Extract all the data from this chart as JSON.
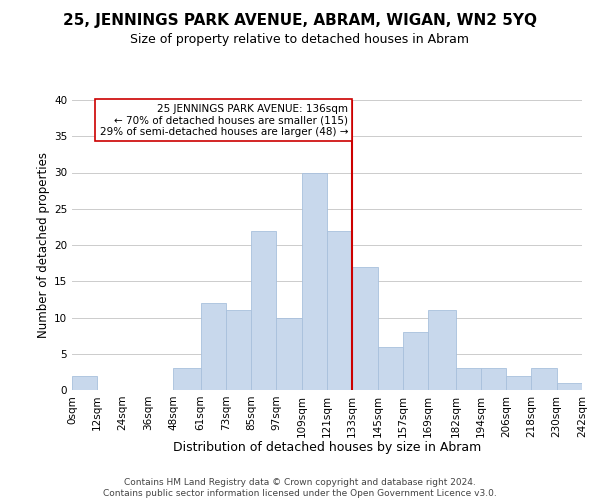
{
  "title": "25, JENNINGS PARK AVENUE, ABRAM, WIGAN, WN2 5YQ",
  "subtitle": "Size of property relative to detached houses in Abram",
  "xlabel": "Distribution of detached houses by size in Abram",
  "ylabel": "Number of detached properties",
  "footer_line1": "Contains HM Land Registry data © Crown copyright and database right 2024.",
  "footer_line2": "Contains public sector information licensed under the Open Government Licence v3.0.",
  "bin_edges": [
    0,
    12,
    24,
    36,
    48,
    61,
    73,
    85,
    97,
    109,
    121,
    133,
    145,
    157,
    169,
    182,
    194,
    206,
    218,
    230,
    242
  ],
  "bin_labels": [
    "0sqm",
    "12sqm",
    "24sqm",
    "36sqm",
    "48sqm",
    "61sqm",
    "73sqm",
    "85sqm",
    "97sqm",
    "109sqm",
    "121sqm",
    "133sqm",
    "145sqm",
    "157sqm",
    "169sqm",
    "182sqm",
    "194sqm",
    "206sqm",
    "218sqm",
    "230sqm",
    "242sqm"
  ],
  "counts": [
    2,
    0,
    0,
    0,
    3,
    12,
    11,
    22,
    10,
    30,
    22,
    17,
    6,
    8,
    11,
    3,
    3,
    2,
    3,
    1
  ],
  "bar_color": "#c8d8ec",
  "bar_edgecolor": "#a8c0dc",
  "reference_line_x": 133,
  "reference_line_color": "#cc0000",
  "annotation_title": "25 JENNINGS PARK AVENUE: 136sqm",
  "annotation_line1": "← 70% of detached houses are smaller (115)",
  "annotation_line2": "29% of semi-detached houses are larger (48) →",
  "annotation_box_color": "#ffffff",
  "annotation_box_edgecolor": "#cc0000",
  "ylim": [
    0,
    40
  ],
  "yticks": [
    0,
    5,
    10,
    15,
    20,
    25,
    30,
    35,
    40
  ],
  "grid_color": "#cccccc",
  "background_color": "#ffffff",
  "title_fontsize": 11,
  "subtitle_fontsize": 9,
  "xlabel_fontsize": 9,
  "ylabel_fontsize": 8.5,
  "tick_fontsize": 7.5,
  "annotation_fontsize": 7.5,
  "footer_fontsize": 6.5
}
